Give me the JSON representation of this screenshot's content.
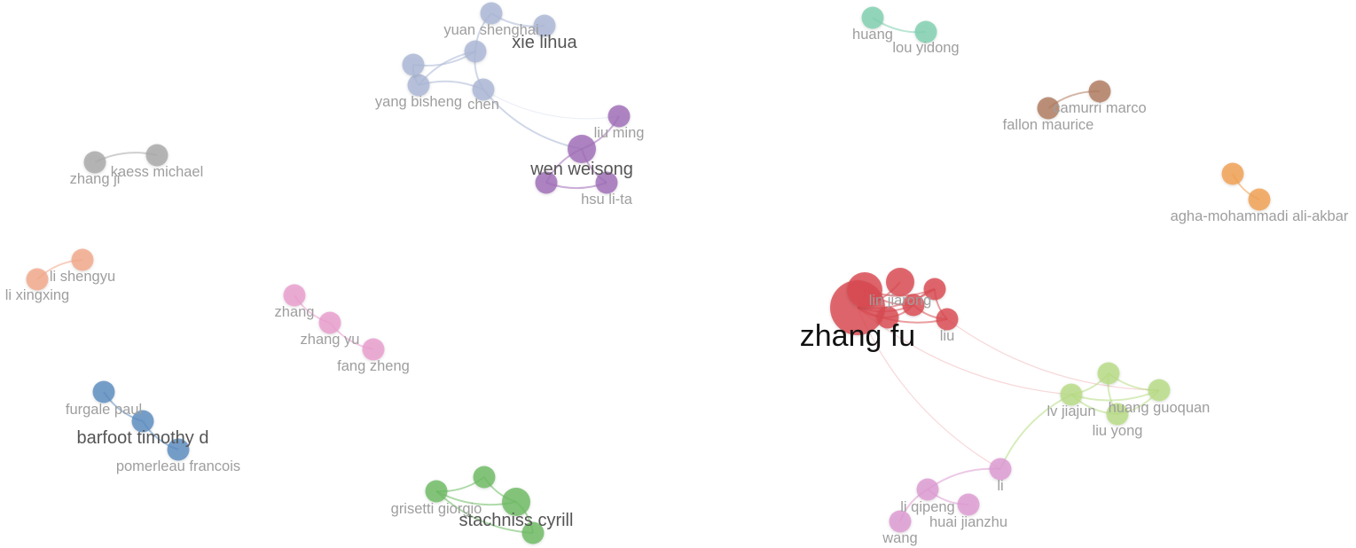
{
  "network": {
    "clusters": [
      {
        "id": "red",
        "color": "#d94a50"
      },
      {
        "id": "periwinkle",
        "color": "#a9b6d6"
      },
      {
        "id": "purple",
        "color": "#a06cb8"
      },
      {
        "id": "teal",
        "color": "#7fcfb0"
      },
      {
        "id": "brown",
        "color": "#b07a5f"
      },
      {
        "id": "orange",
        "color": "#f0a050"
      },
      {
        "id": "gray",
        "color": "#a8a8a8"
      },
      {
        "id": "salmon",
        "color": "#f2a88a"
      },
      {
        "id": "pink",
        "color": "#e99ccd"
      },
      {
        "id": "blue",
        "color": "#5b8cc0"
      },
      {
        "id": "green",
        "color": "#6cbb63"
      },
      {
        "id": "lime",
        "color": "#b7dc84"
      },
      {
        "id": "magenta",
        "color": "#dd9ad2"
      }
    ],
    "nodes": [
      {
        "id": "zhang-fu",
        "label": "zhang fu",
        "cluster": "red",
        "size": "xlarge",
        "emphasis": "big"
      },
      {
        "id": "lin-jiarong",
        "label": "lin jiarong",
        "cluster": "red",
        "size": "medium",
        "emphasis": "normal"
      },
      {
        "id": "liu",
        "label": "liu",
        "cluster": "red",
        "size": "small",
        "emphasis": "normal"
      },
      {
        "id": "red-a",
        "label": "",
        "cluster": "red",
        "size": "large",
        "emphasis": "normal"
      },
      {
        "id": "red-b",
        "label": "",
        "cluster": "red",
        "size": "small",
        "emphasis": "normal"
      },
      {
        "id": "red-c",
        "label": "",
        "cluster": "red",
        "size": "small",
        "emphasis": "normal"
      },
      {
        "id": "red-d",
        "label": "",
        "cluster": "red",
        "size": "small",
        "emphasis": "normal"
      },
      {
        "id": "yuan-shenghai",
        "label": "yuan shenghai",
        "cluster": "periwinkle",
        "size": "small",
        "emphasis": "normal"
      },
      {
        "id": "xie-lihua",
        "label": "xie lihua",
        "cluster": "periwinkle",
        "size": "small",
        "emphasis": "mid"
      },
      {
        "id": "yang-bisheng",
        "label": "yang bisheng",
        "cluster": "periwinkle",
        "size": "small",
        "emphasis": "normal"
      },
      {
        "id": "chen",
        "label": "chen",
        "cluster": "periwinkle",
        "size": "small",
        "emphasis": "normal"
      },
      {
        "id": "peri-a",
        "label": "",
        "cluster": "periwinkle",
        "size": "small",
        "emphasis": "normal"
      },
      {
        "id": "peri-b",
        "label": "",
        "cluster": "periwinkle",
        "size": "small",
        "emphasis": "normal"
      },
      {
        "id": "wen-weisong",
        "label": "wen weisong",
        "cluster": "purple",
        "size": "medium",
        "emphasis": "mid"
      },
      {
        "id": "liu-ming",
        "label": "liu ming",
        "cluster": "purple",
        "size": "small",
        "emphasis": "normal"
      },
      {
        "id": "hsu-li-ta",
        "label": "hsu li-ta",
        "cluster": "purple",
        "size": "small",
        "emphasis": "normal"
      },
      {
        "id": "purple-a",
        "label": "",
        "cluster": "purple",
        "size": "small",
        "emphasis": "normal"
      },
      {
        "id": "huang",
        "label": "huang",
        "cluster": "teal",
        "size": "small",
        "emphasis": "normal"
      },
      {
        "id": "lou-yidong",
        "label": "lou yidong",
        "cluster": "teal",
        "size": "small",
        "emphasis": "normal"
      },
      {
        "id": "camurri-marco",
        "label": "camurri marco",
        "cluster": "brown",
        "size": "small",
        "emphasis": "normal"
      },
      {
        "id": "fallon-maurice",
        "label": "fallon maurice",
        "cluster": "brown",
        "size": "small",
        "emphasis": "normal"
      },
      {
        "id": "orange-a",
        "label": "",
        "cluster": "orange",
        "size": "small",
        "emphasis": "normal"
      },
      {
        "id": "agha-mohammadi",
        "label": "agha-mohammadi ali-akbar",
        "cluster": "orange",
        "size": "small",
        "emphasis": "normal"
      },
      {
        "id": "kaess-michael",
        "label": "kaess michael",
        "cluster": "gray",
        "size": "small",
        "emphasis": "normal"
      },
      {
        "id": "zhang-ji",
        "label": "zhang ji",
        "cluster": "gray",
        "size": "small",
        "emphasis": "normal"
      },
      {
        "id": "li-shengyu",
        "label": "li shengyu",
        "cluster": "salmon",
        "size": "small",
        "emphasis": "normal"
      },
      {
        "id": "li-xingxing",
        "label": "li xingxing",
        "cluster": "salmon",
        "size": "small",
        "emphasis": "normal"
      },
      {
        "id": "zhang",
        "label": "zhang",
        "cluster": "pink",
        "size": "small",
        "emphasis": "normal"
      },
      {
        "id": "zhang-yu",
        "label": "zhang yu",
        "cluster": "pink",
        "size": "small",
        "emphasis": "normal"
      },
      {
        "id": "fang-zheng",
        "label": "fang zheng",
        "cluster": "pink",
        "size": "small",
        "emphasis": "normal"
      },
      {
        "id": "furgale-paul",
        "label": "furgale paul",
        "cluster": "blue",
        "size": "small",
        "emphasis": "normal"
      },
      {
        "id": "barfoot-timothy-d",
        "label": "barfoot timothy d",
        "cluster": "blue",
        "size": "small",
        "emphasis": "mid"
      },
      {
        "id": "pomerleau-francois",
        "label": "pomerleau francois",
        "cluster": "blue",
        "size": "small",
        "emphasis": "normal"
      },
      {
        "id": "grisetti-giorgio",
        "label": "grisetti giorgio",
        "cluster": "green",
        "size": "small",
        "emphasis": "normal"
      },
      {
        "id": "stachniss-cyrill",
        "label": "stachniss cyrill",
        "cluster": "green",
        "size": "medium",
        "emphasis": "mid"
      },
      {
        "id": "green-a",
        "label": "",
        "cluster": "green",
        "size": "small",
        "emphasis": "normal"
      },
      {
        "id": "green-b",
        "label": "",
        "cluster": "green",
        "size": "small",
        "emphasis": "normal"
      },
      {
        "id": "lv-jiajun",
        "label": "lv jiajun",
        "cluster": "lime",
        "size": "small",
        "emphasis": "normal"
      },
      {
        "id": "huang-guoquan",
        "label": "huang guoquan",
        "cluster": "lime",
        "size": "small",
        "emphasis": "normal"
      },
      {
        "id": "liu-yong",
        "label": "liu yong",
        "cluster": "lime",
        "size": "small",
        "emphasis": "normal"
      },
      {
        "id": "lime-a",
        "label": "",
        "cluster": "lime",
        "size": "small",
        "emphasis": "normal"
      },
      {
        "id": "li",
        "label": "li",
        "cluster": "magenta",
        "size": "small",
        "emphasis": "normal"
      },
      {
        "id": "li-qipeng",
        "label": "li qipeng",
        "cluster": "magenta",
        "size": "small",
        "emphasis": "normal"
      },
      {
        "id": "huai-jianzhu",
        "label": "huai jianzhu",
        "cluster": "magenta",
        "size": "small",
        "emphasis": "normal"
      },
      {
        "id": "wang",
        "label": "wang",
        "cluster": "magenta",
        "size": "small",
        "emphasis": "normal"
      }
    ],
    "edges": [
      [
        "zhang-fu",
        "red-a"
      ],
      [
        "zhang-fu",
        "lin-jiarong"
      ],
      [
        "zhang-fu",
        "liu"
      ],
      [
        "zhang-fu",
        "red-b"
      ],
      [
        "zhang-fu",
        "red-c"
      ],
      [
        "zhang-fu",
        "red-d"
      ],
      [
        "red-a",
        "red-b"
      ],
      [
        "red-a",
        "red-c"
      ],
      [
        "red-b",
        "red-c"
      ],
      [
        "red-b",
        "liu"
      ],
      [
        "red-c",
        "liu"
      ],
      [
        "red-d",
        "red-c"
      ],
      [
        "zhang-fu",
        "lv-jiajun"
      ],
      [
        "zhang-fu",
        "li"
      ],
      [
        "liu",
        "huang-guoquan"
      ],
      [
        "lv-jiajun",
        "lime-a"
      ],
      [
        "lv-jiajun",
        "huang-guoquan"
      ],
      [
        "lv-jiajun",
        "liu-yong"
      ],
      [
        "lime-a",
        "liu-yong"
      ],
      [
        "lime-a",
        "huang-guoquan"
      ],
      [
        "liu-yong",
        "huang-guoquan"
      ],
      [
        "li",
        "li-qipeng"
      ],
      [
        "li-qipeng",
        "huai-jianzhu"
      ],
      [
        "li-qipeng",
        "wang"
      ],
      [
        "lv-jiajun",
        "li"
      ],
      [
        "yuan-shenghai",
        "xie-lihua"
      ],
      [
        "yuan-shenghai",
        "peri-b"
      ],
      [
        "peri-b",
        "yang-bisheng"
      ],
      [
        "peri-a",
        "yang-bisheng"
      ],
      [
        "peri-a",
        "peri-b"
      ],
      [
        "chen",
        "yang-bisheng"
      ],
      [
        "peri-b",
        "chen"
      ],
      [
        "chen",
        "liu-ming"
      ],
      [
        "chen",
        "wen-weisong"
      ],
      [
        "wen-weisong",
        "purple-a"
      ],
      [
        "wen-weisong",
        "hsu-li-ta"
      ],
      [
        "purple-a",
        "hsu-li-ta"
      ],
      [
        "wen-weisong",
        "liu-ming"
      ],
      [
        "huang",
        "lou-yidong"
      ],
      [
        "camurri-marco",
        "fallon-maurice"
      ],
      [
        "orange-a",
        "agha-mohammadi"
      ],
      [
        "kaess-michael",
        "zhang-ji"
      ],
      [
        "li-shengyu",
        "li-xingxing"
      ],
      [
        "zhang",
        "zhang-yu"
      ],
      [
        "zhang-yu",
        "fang-zheng"
      ],
      [
        "furgale-paul",
        "barfoot-timothy-d"
      ],
      [
        "barfoot-timothy-d",
        "pomerleau-francois"
      ],
      [
        "grisetti-giorgio",
        "stachniss-cyrill"
      ],
      [
        "green-a",
        "stachniss-cyrill"
      ],
      [
        "grisetti-giorgio",
        "green-a"
      ],
      [
        "green-b",
        "stachniss-cyrill"
      ],
      [
        "grisetti-giorgio",
        "green-b"
      ]
    ]
  }
}
